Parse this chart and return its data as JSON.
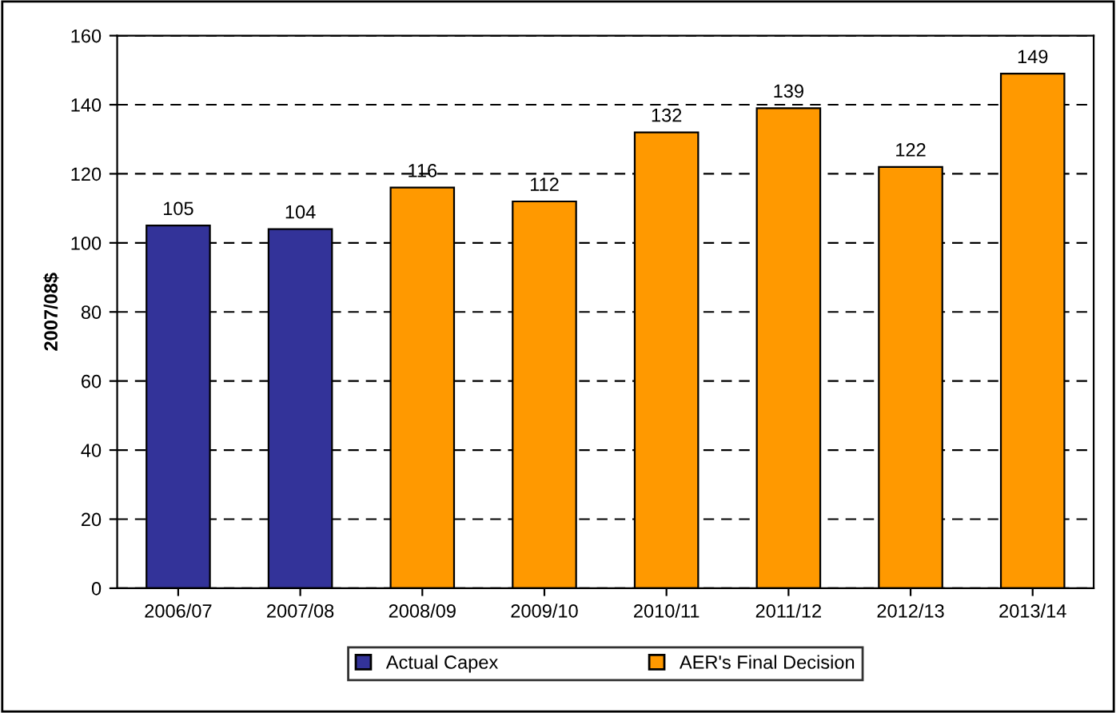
{
  "chart_data": {
    "type": "bar",
    "ylabel": "2007/08$",
    "categories": [
      "2006/07",
      "2007/08",
      "2008/09",
      "2009/10",
      "2010/11",
      "2011/12",
      "2012/13",
      "2013/14"
    ],
    "series": [
      {
        "name": "Actual Capex",
        "color": "#333399",
        "values": [
          105,
          104,
          null,
          null,
          null,
          null,
          null,
          null
        ]
      },
      {
        "name": "AER's Final Decision",
        "color": "#ff9900",
        "values": [
          null,
          null,
          116,
          112,
          132,
          139,
          122,
          149
        ]
      }
    ],
    "ylim": [
      0,
      160
    ],
    "yticks": [
      0,
      20,
      40,
      60,
      80,
      100,
      120,
      140,
      160
    ],
    "grid": "y",
    "line_style": "dashed",
    "legend": "bottom",
    "data_labels": true
  }
}
